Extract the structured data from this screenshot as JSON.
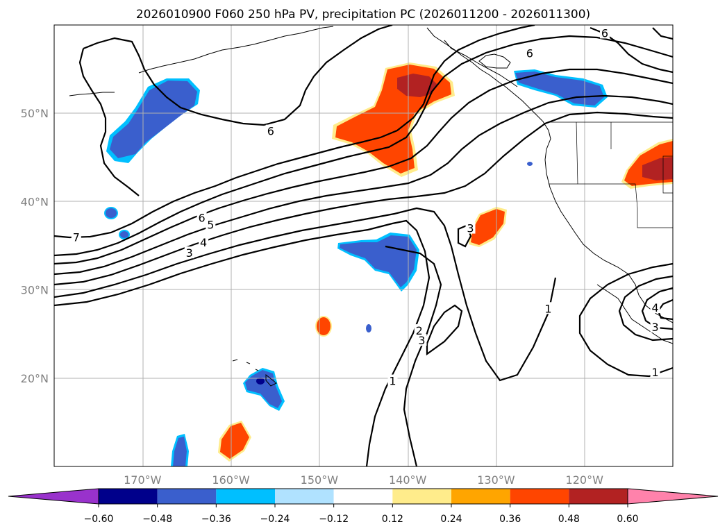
{
  "chart_data": {
    "type": "contour-map",
    "title": "2026010900 F060 250 hPa PV, precipitation PC (2026011200 - 2026011300)",
    "projection": "lat-lon",
    "lon_range": [
      -180,
      -110
    ],
    "lat_range": [
      10,
      60
    ],
    "grid": true,
    "lon_ticks": [
      -170,
      -160,
      -150,
      -140,
      -130,
      -120
    ],
    "lon_tick_labels": [
      "170°W",
      "160°W",
      "150°W",
      "140°W",
      "130°W",
      "120°W"
    ],
    "lat_ticks": [
      20,
      30,
      40,
      50
    ],
    "lat_tick_labels": [
      "20°N",
      "30°N",
      "40°N",
      "50°N"
    ],
    "contour_field": "250 hPa PV",
    "contour_labels": [
      {
        "text": "7",
        "lon": -177.5,
        "lat": 36.0
      },
      {
        "text": "6",
        "lon": -163.3,
        "lat": 38.2
      },
      {
        "text": "5",
        "lon": -162.3,
        "lat": 37.4
      },
      {
        "text": "4",
        "lon": -163.1,
        "lat": 35.4
      },
      {
        "text": "3",
        "lon": -164.7,
        "lat": 34.2
      },
      {
        "text": "6",
        "lon": -155.5,
        "lat": 48.0
      },
      {
        "text": "6",
        "lon": -126.2,
        "lat": 56.8
      },
      {
        "text": "6",
        "lon": -117.7,
        "lat": 59.1
      },
      {
        "text": "3",
        "lon": -132.9,
        "lat": 37.0
      },
      {
        "text": "3",
        "lon": -138.4,
        "lat": 24.3
      },
      {
        "text": "2",
        "lon": -138.7,
        "lat": 25.4
      },
      {
        "text": "1",
        "lon": -141.7,
        "lat": 19.7
      },
      {
        "text": "1",
        "lon": -124.1,
        "lat": 27.9
      },
      {
        "text": "1",
        "lon": -112.0,
        "lat": 20.7
      },
      {
        "text": "3",
        "lon": -112.0,
        "lat": 25.8
      },
      {
        "text": "4",
        "lon": -112.0,
        "lat": 28.0
      }
    ],
    "shading_field": "precipitation PC",
    "colorbar": {
      "extend": "both",
      "ticks": [
        "−0.60",
        "−0.48",
        "−0.36",
        "−0.24",
        "−0.12",
        "0.12",
        "0.24",
        "0.36",
        "0.48",
        "0.60"
      ],
      "tick_values": [
        -0.6,
        -0.48,
        -0.36,
        -0.24,
        -0.12,
        0.12,
        0.24,
        0.36,
        0.48,
        0.6
      ],
      "colors": [
        "#9932CC",
        "#00008B",
        "#3A5FCD",
        "#00BFFF",
        "#B0E2FF",
        "#FFFFFF",
        "#FFEC8B",
        "#FFA500",
        "#FF4500",
        "#B22222",
        "#FF82AB"
      ]
    },
    "shaded_regions": [
      {
        "name": "aleutian-negative",
        "sign": "negative",
        "peak": -0.36,
        "center_lon": -169.5,
        "center_lat": 48.5
      },
      {
        "name": "gulf-of-alaska-positive",
        "sign": "positive",
        "peak": 0.48,
        "center_lon": -140.5,
        "center_lat": 50.0
      },
      {
        "name": "bc-coast-negative",
        "sign": "negative",
        "peak": -0.36,
        "center_lon": -125.5,
        "center_lat": 53.5
      },
      {
        "name": "california-positive",
        "sign": "positive",
        "peak": 0.48,
        "center_lon": -112.5,
        "center_lat": 43.5
      },
      {
        "name": "subtropical-negative",
        "sign": "negative",
        "peak": -0.36,
        "center_lon": -142.5,
        "center_lat": 34.0
      },
      {
        "name": "offshore-positive",
        "sign": "positive",
        "peak": 0.36,
        "center_lon": -130.8,
        "center_lat": 37.2
      },
      {
        "name": "small-positive",
        "sign": "positive",
        "peak": 0.36,
        "center_lon": -149.2,
        "center_lat": 25.9
      },
      {
        "name": "hawaii-negative",
        "sign": "negative",
        "peak": -0.48,
        "center_lon": -156.5,
        "center_lat": 18.9
      },
      {
        "name": "south-positive",
        "sign": "positive",
        "peak": 0.36,
        "center_lon": -159.8,
        "center_lat": 12.8
      },
      {
        "name": "south-negative",
        "sign": "negative",
        "peak": -0.36,
        "center_lon": -166.0,
        "center_lat": 11.7
      }
    ]
  }
}
